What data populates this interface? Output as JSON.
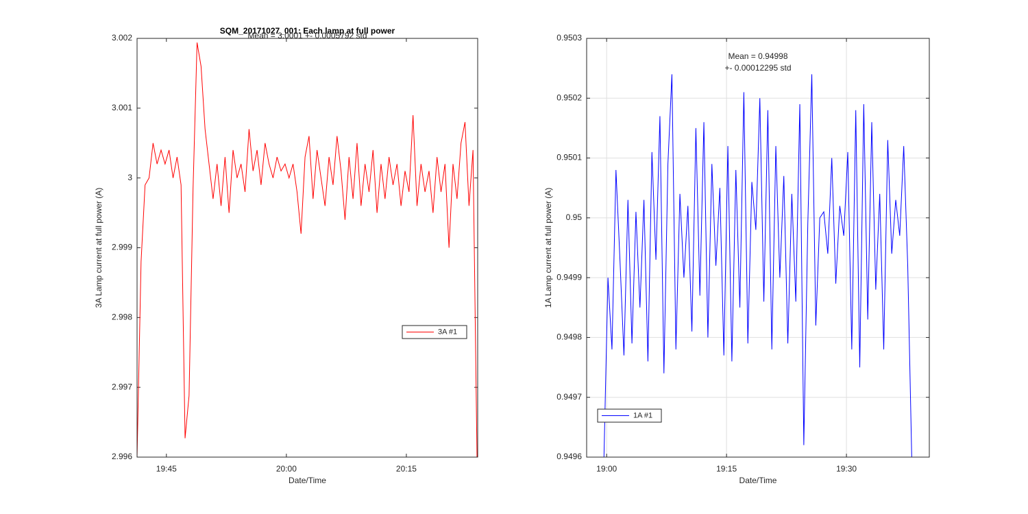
{
  "chart_data": [
    {
      "type": "line",
      "title": "SQM_20171027_001: Each lamp at full power",
      "annotations": [
        "Mean = 3.0001 +- 0.0005792 std"
      ],
      "xlabel": "Date/Time",
      "ylabel": "3A Lamp current at full power (A)",
      "xlim": [
        "19:41:20",
        "20:23:55"
      ],
      "xticks": [
        "19:45",
        "20:00",
        "20:15"
      ],
      "ylim": [
        2.996,
        3.002
      ],
      "yticks": [
        2.996,
        2.997,
        2.998,
        2.999,
        3,
        3.001,
        3.002
      ],
      "grid": false,
      "legend": "southeast",
      "x": [
        "19:41:20",
        "19:41:50",
        "19:42:20",
        "19:42:50",
        "19:43:20",
        "19:43:50",
        "19:44:20",
        "19:44:50",
        "19:45:20",
        "19:45:50",
        "19:46:20",
        "19:46:50",
        "19:47:20",
        "19:47:50",
        "19:48:20",
        "19:48:50",
        "19:49:20",
        "19:49:50",
        "19:50:20",
        "19:50:50",
        "19:51:20",
        "19:51:50",
        "19:52:20",
        "19:52:50",
        "19:53:20",
        "19:53:50",
        "19:54:20",
        "19:54:50",
        "19:55:20",
        "19:55:50",
        "19:56:20",
        "19:56:50",
        "19:57:20",
        "19:57:50",
        "19:58:20",
        "19:58:50",
        "19:59:20",
        "19:59:50",
        "20:00:20",
        "20:00:50",
        "20:01:20",
        "20:01:50",
        "20:02:20",
        "20:02:50",
        "20:03:20",
        "20:03:50",
        "20:04:20",
        "20:04:50",
        "20:05:20",
        "20:05:50",
        "20:06:20",
        "20:06:50",
        "20:07:20",
        "20:07:50",
        "20:08:20",
        "20:08:50",
        "20:09:20",
        "20:09:50",
        "20:10:20",
        "20:10:50",
        "20:11:20",
        "20:11:50",
        "20:12:20",
        "20:12:50",
        "20:13:20",
        "20:13:50",
        "20:14:20",
        "20:14:50",
        "20:15:20",
        "20:15:50",
        "20:16:20",
        "20:16:50",
        "20:17:20",
        "20:17:50",
        "20:18:20",
        "20:18:50",
        "20:19:20",
        "20:19:50",
        "20:20:20",
        "20:20:50",
        "20:21:20",
        "20:21:50",
        "20:22:20",
        "20:22:50",
        "20:23:20",
        "20:23:50"
      ],
      "series": [
        {
          "name": "3A #1",
          "color": "#ff0000",
          "values": [
            2.996,
            2.9988,
            2.9999,
            3.0,
            3.0005,
            3.0002,
            3.0004,
            3.0002,
            3.0004,
            3.0,
            3.0003,
            2.9999,
            2.99627,
            2.99688,
            2.99985,
            3.00194,
            3.0016,
            3.0007,
            3.0002,
            2.9997,
            3.0002,
            2.9996,
            3.0003,
            2.9995,
            3.0004,
            3.0,
            3.0002,
            2.9998,
            3.0007,
            3.0001,
            3.0004,
            2.9999,
            3.0005,
            3.0002,
            3.0,
            3.0003,
            3.0001,
            3.0002,
            3.0,
            3.0002,
            2.9998,
            2.9992,
            3.0003,
            3.0006,
            2.9997,
            3.0004,
            3.0,
            2.9996,
            3.0003,
            2.9999,
            3.0006,
            3.0001,
            2.9994,
            3.0003,
            2.9997,
            3.0005,
            2.9996,
            3.0002,
            2.9998,
            3.0004,
            2.9995,
            3.0002,
            2.9997,
            3.0003,
            2.9999,
            3.0002,
            2.9996,
            3.0001,
            2.9998,
            3.0009,
            2.9996,
            3.0002,
            2.9998,
            3.0001,
            2.9995,
            3.0003,
            2.9998,
            3.0002,
            2.999,
            3.0002,
            2.9997,
            3.0005,
            3.0008,
            2.9996,
            3.0004,
            2.996
          ]
        }
      ]
    },
    {
      "type": "line",
      "annotations": [
        "Mean = 0.94998",
        "+- 0.00012295 std"
      ],
      "xlabel": "Date/Time",
      "ylabel": "1A Lamp current at full power (A)",
      "xlim": [
        "18:57:30",
        "19:40:22"
      ],
      "xticks": [
        "19:00",
        "19:15",
        "19:30"
      ],
      "ylim": [
        0.9496,
        0.9503
      ],
      "yticks": [
        0.9496,
        0.9497,
        0.9498,
        0.9499,
        0.95,
        0.9501,
        0.9502,
        0.9503
      ],
      "grid": true,
      "legend": "southwest",
      "x": [
        "18:59:40",
        "19:00:10",
        "19:00:40",
        "19:01:10",
        "19:01:40",
        "19:02:10",
        "19:02:40",
        "19:03:10",
        "19:03:40",
        "19:04:10",
        "19:04:40",
        "19:05:10",
        "19:05:40",
        "19:06:10",
        "19:06:40",
        "19:07:10",
        "19:07:40",
        "19:08:10",
        "19:08:40",
        "19:09:10",
        "19:09:40",
        "19:10:10",
        "19:10:40",
        "19:11:10",
        "19:11:40",
        "19:12:10",
        "19:12:40",
        "19:13:10",
        "19:13:40",
        "19:14:10",
        "19:14:40",
        "19:15:10",
        "19:15:40",
        "19:16:10",
        "19:16:40",
        "19:17:10",
        "19:17:40",
        "19:18:10",
        "19:18:40",
        "19:19:10",
        "19:19:40",
        "19:20:10",
        "19:20:40",
        "19:21:10",
        "19:21:40",
        "19:22:10",
        "19:22:40",
        "19:23:10",
        "19:23:40",
        "19:24:10",
        "19:24:40",
        "19:25:10",
        "19:25:40",
        "19:26:10",
        "19:26:40",
        "19:27:10",
        "19:27:40",
        "19:28:10",
        "19:28:40",
        "19:29:10",
        "19:29:40",
        "19:30:10",
        "19:30:40",
        "19:31:10",
        "19:31:40",
        "19:32:10",
        "19:32:40",
        "19:33:10",
        "19:33:40",
        "19:34:10",
        "19:34:40",
        "19:35:10",
        "19:35:40",
        "19:36:10",
        "19:36:40",
        "19:37:10",
        "19:37:40",
        "19:38:10"
      ],
      "series": [
        {
          "name": "1A #1",
          "color": "#0000ff",
          "values": [
            0.9496,
            0.9499,
            0.94978,
            0.95008,
            0.94993,
            0.94977,
            0.95003,
            0.94979,
            0.95001,
            0.94985,
            0.95003,
            0.94976,
            0.95011,
            0.94993,
            0.95017,
            0.94974,
            0.95009,
            0.95024,
            0.94978,
            0.95004,
            0.9499,
            0.95002,
            0.94981,
            0.95015,
            0.94987,
            0.95016,
            0.9498,
            0.95009,
            0.94992,
            0.95005,
            0.94977,
            0.95012,
            0.94976,
            0.95008,
            0.94985,
            0.95021,
            0.94979,
            0.95006,
            0.94998,
            0.9502,
            0.94986,
            0.95018,
            0.94978,
            0.95012,
            0.9499,
            0.95007,
            0.94979,
            0.95004,
            0.94986,
            0.95019,
            0.94962,
            0.94999,
            0.95024,
            0.94982,
            0.95,
            0.95001,
            0.94994,
            0.9501,
            0.94989,
            0.95002,
            0.94997,
            0.95011,
            0.94978,
            0.95018,
            0.94975,
            0.95019,
            0.94983,
            0.95016,
            0.94988,
            0.95004,
            0.94978,
            0.95013,
            0.94994,
            0.95003,
            0.94997,
            0.95012,
            0.94992,
            0.9496
          ]
        }
      ]
    }
  ]
}
